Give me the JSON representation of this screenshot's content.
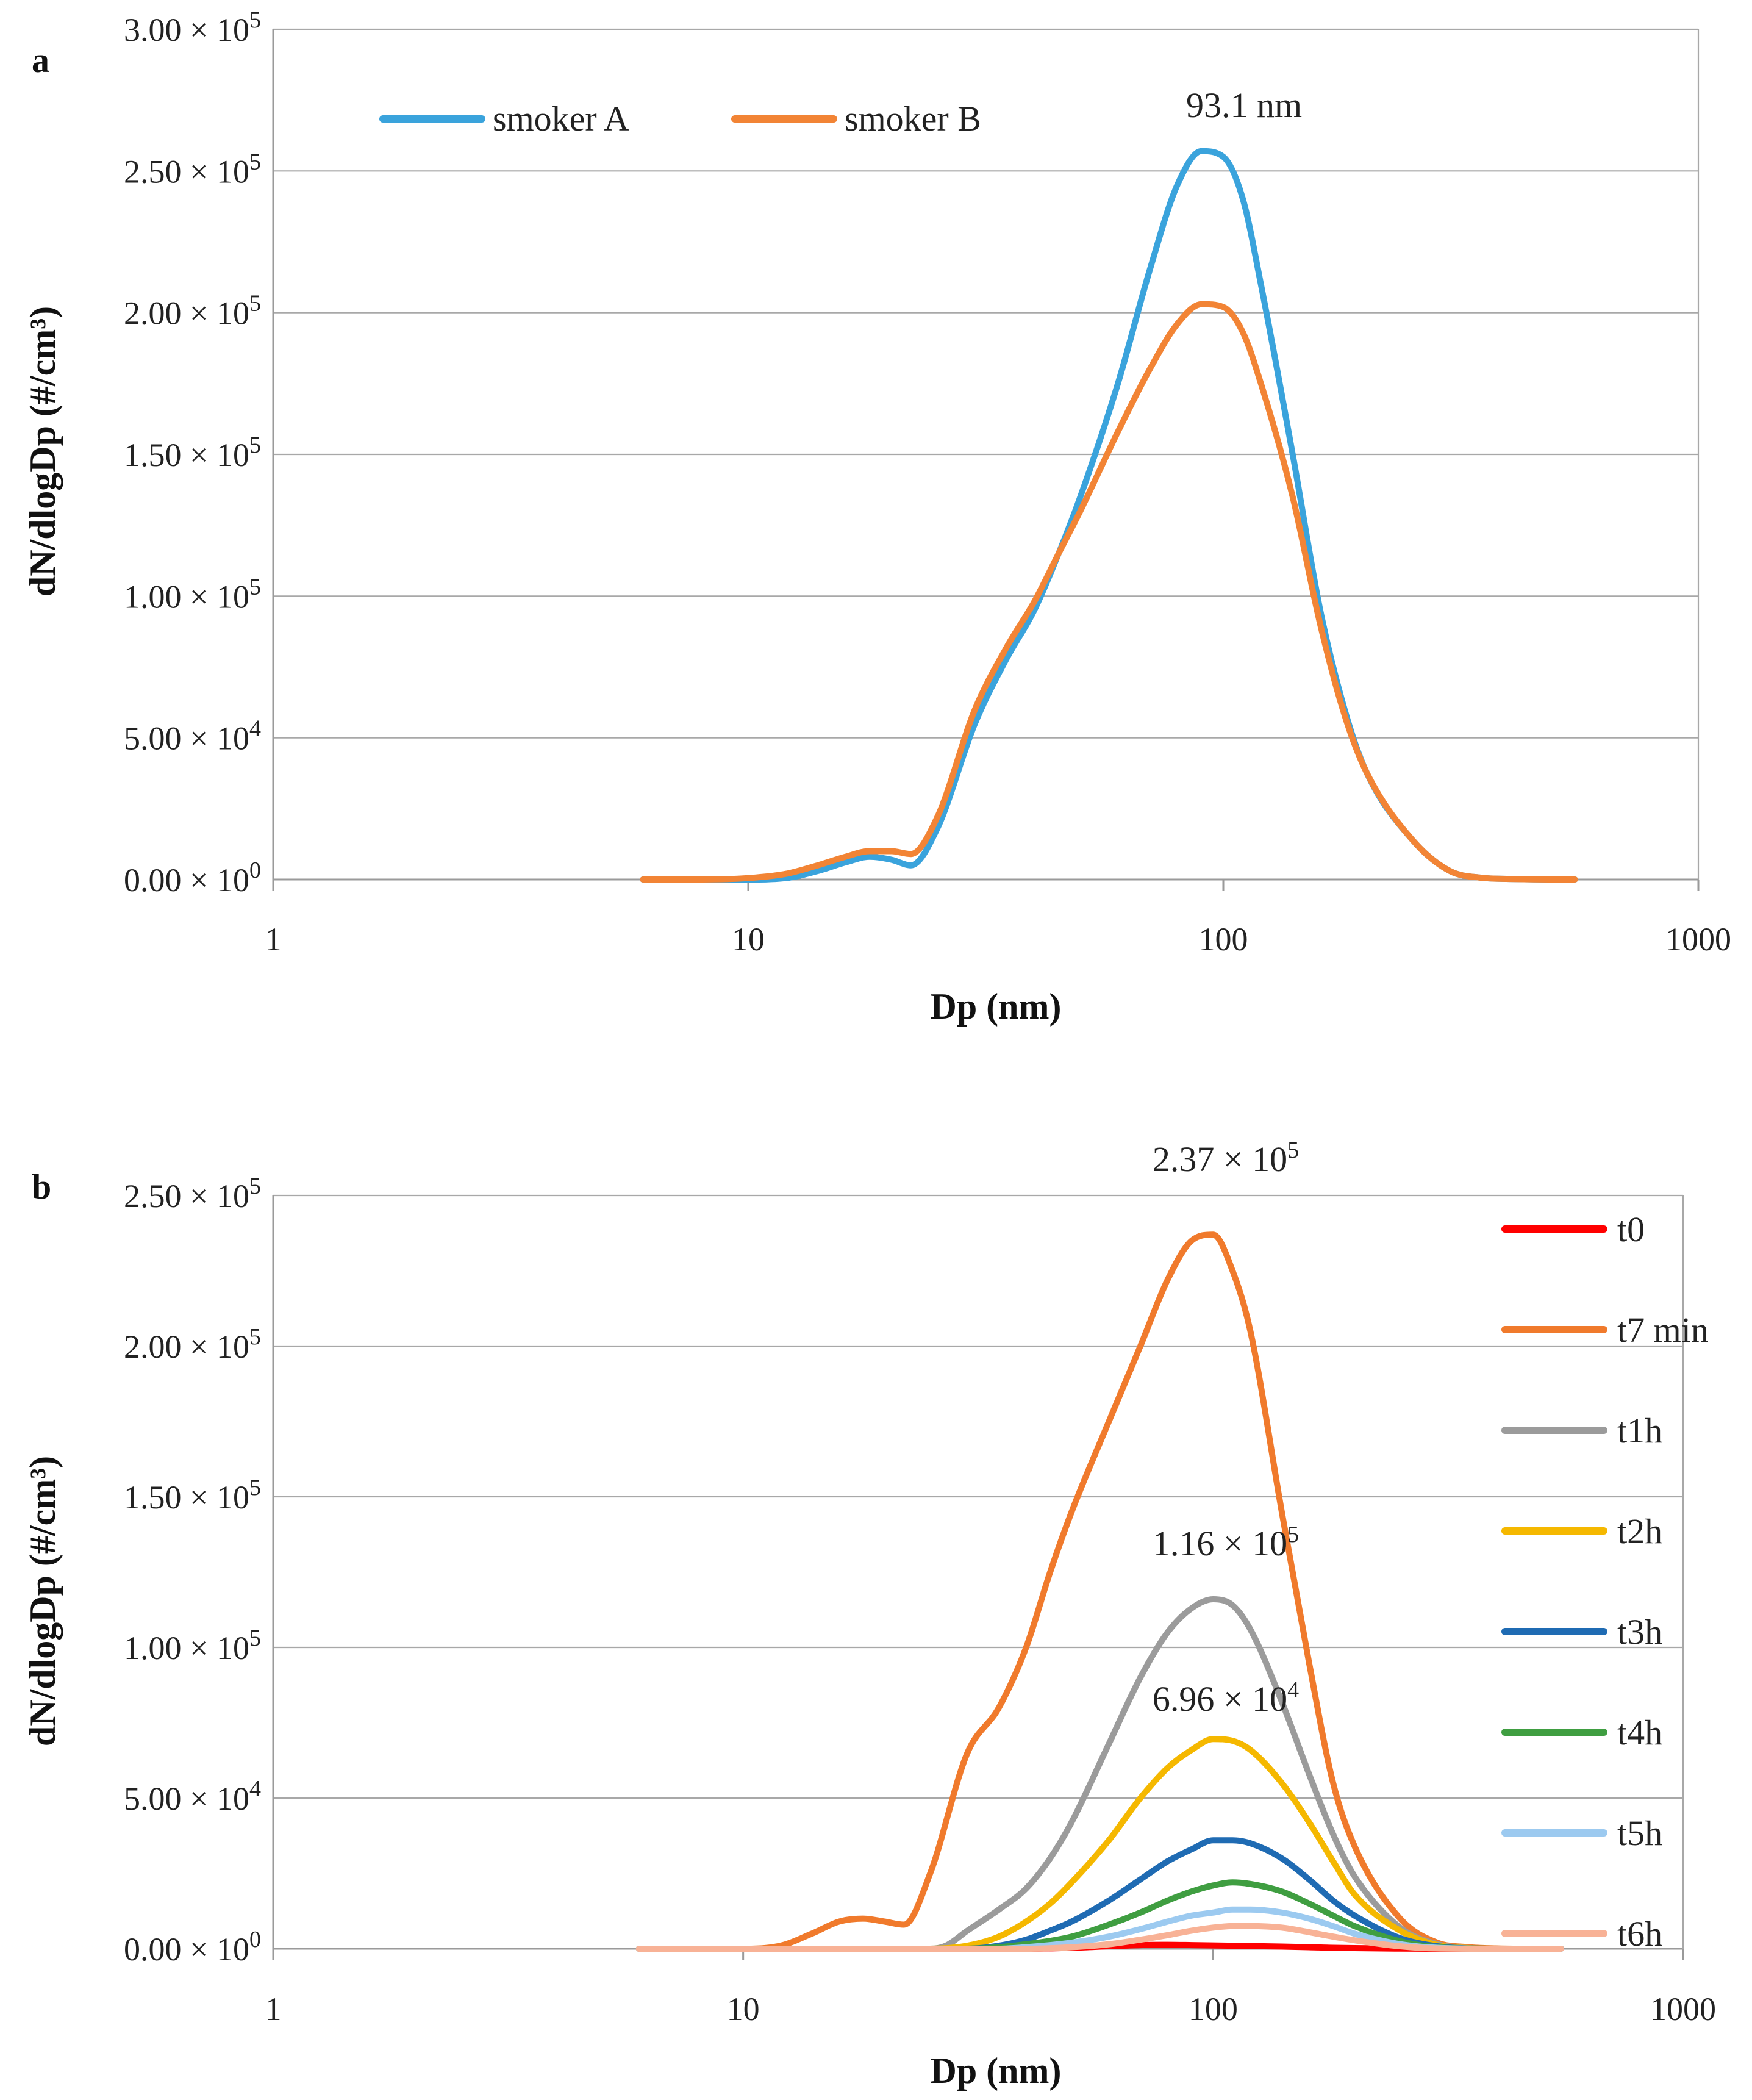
{
  "chart_data": [
    {
      "type": "line",
      "panel_label": "a",
      "xlabel": "Dp (nm)",
      "ylabel": "dN/dlogDp (#/cm³)",
      "xscale": "log",
      "xlim": [
        1,
        1000
      ],
      "ylim": [
        0,
        300000
      ],
      "x_ticks": [
        "1",
        "10",
        "100",
        "1000"
      ],
      "y_ticks": [
        {
          "mant": "0.00",
          "exp": "0"
        },
        {
          "mant": "5.00",
          "exp": "4"
        },
        {
          "mant": "1.00",
          "exp": "5"
        },
        {
          "mant": "1.50",
          "exp": "5"
        },
        {
          "mant": "2.00",
          "exp": "5"
        },
        {
          "mant": "2.50",
          "exp": "5"
        },
        {
          "mant": "3.00",
          "exp": "5"
        }
      ],
      "grid": true,
      "legend_position": "top-left",
      "annotations": [
        {
          "text": "93.1 nm"
        }
      ],
      "series": [
        {
          "name": "smoker A",
          "color": "#3aa3dc",
          "x": [
            6,
            8,
            10,
            12,
            14,
            16,
            18,
            20,
            22,
            25,
            30,
            35,
            40,
            45,
            50,
            60,
            70,
            80,
            90,
            100,
            110,
            120,
            140,
            160,
            180,
            200,
            250,
            300,
            350,
            400,
            450,
            500,
            550
          ],
          "values": [
            0,
            0,
            0,
            500,
            3000,
            6000,
            8000,
            7000,
            5000,
            18000,
            55000,
            78000,
            95000,
            115000,
            135000,
            175000,
            215000,
            245000,
            257000,
            255000,
            240000,
            210000,
            150000,
            95000,
            60000,
            38000,
            14000,
            3000,
            600,
            200,
            50,
            0,
            0
          ]
        },
        {
          "name": "smoker B",
          "color": "#f28435",
          "x": [
            6,
            8,
            10,
            12,
            14,
            16,
            18,
            20,
            22,
            25,
            30,
            35,
            40,
            45,
            50,
            60,
            70,
            80,
            90,
            100,
            110,
            120,
            140,
            160,
            180,
            200,
            250,
            300,
            350,
            400,
            450,
            500,
            550
          ],
          "values": [
            0,
            0,
            500,
            2000,
            5000,
            8000,
            10000,
            10000,
            9000,
            22000,
            60000,
            82000,
            98000,
            115000,
            130000,
            158000,
            180000,
            196000,
            203000,
            202000,
            193000,
            175000,
            135000,
            90000,
            58000,
            38000,
            14000,
            3000,
            600,
            200,
            50,
            0,
            0
          ]
        }
      ]
    },
    {
      "type": "line",
      "panel_label": "b",
      "xlabel": "Dp (nm)",
      "ylabel": "dN/dlogDp (#/cm³)",
      "xscale": "log",
      "xlim": [
        1,
        1000
      ],
      "ylim": [
        0,
        250000
      ],
      "x_ticks": [
        "1",
        "10",
        "100",
        "1000"
      ],
      "y_ticks": [
        {
          "mant": "0.00",
          "exp": "0"
        },
        {
          "mant": "5.00",
          "exp": "4"
        },
        {
          "mant": "1.00",
          "exp": "5"
        },
        {
          "mant": "1.50",
          "exp": "5"
        },
        {
          "mant": "2.00",
          "exp": "5"
        },
        {
          "mant": "2.50",
          "exp": "5"
        }
      ],
      "grid": true,
      "legend_position": "right",
      "annotations": [
        {
          "mant": "2.37",
          "exp": "5"
        },
        {
          "mant": "1.16",
          "exp": "5"
        },
        {
          "mant": "6.96",
          "exp": "4"
        }
      ],
      "series": [
        {
          "name": "t0",
          "color": "#ff0000",
          "x": [
            6,
            40,
            50,
            60,
            70,
            80,
            90,
            100,
            110,
            120,
            140,
            160,
            180,
            200,
            250,
            300,
            550
          ],
          "values": [
            0,
            0,
            300,
            800,
            1200,
            1300,
            1200,
            1100,
            1000,
            900,
            700,
            500,
            300,
            200,
            50,
            0,
            0
          ]
        },
        {
          "name": "t7 min",
          "color": "#f07a2c",
          "x": [
            6,
            8,
            10,
            12,
            14,
            16,
            18,
            20,
            22,
            25,
            30,
            35,
            40,
            45,
            50,
            60,
            70,
            80,
            90,
            100,
            110,
            120,
            140,
            160,
            180,
            200,
            250,
            300,
            350,
            400,
            450,
            500,
            550
          ],
          "values": [
            0,
            0,
            0,
            1000,
            5000,
            9000,
            10000,
            9000,
            8000,
            25000,
            65000,
            80000,
            100000,
            125000,
            145000,
            175000,
            200000,
            222000,
            235000,
            237000,
            225000,
            205000,
            145000,
            95000,
            55000,
            34000,
            10000,
            2000,
            500,
            100,
            0,
            0,
            0
          ]
        },
        {
          "name": "t1h",
          "color": "#9b9b9b",
          "x": [
            6,
            25,
            27,
            30,
            35,
            40,
            45,
            50,
            60,
            70,
            80,
            90,
            100,
            110,
            120,
            140,
            160,
            180,
            200,
            250,
            300,
            350,
            400,
            550
          ],
          "values": [
            0,
            0,
            1000,
            6000,
            13000,
            20000,
            30000,
            42000,
            68000,
            90000,
            105000,
            113000,
            116000,
            114000,
            106000,
            82000,
            58000,
            38000,
            24000,
            7000,
            1500,
            200,
            0,
            0
          ]
        },
        {
          "name": "t2h",
          "color": "#f5b800",
          "x": [
            6,
            25,
            30,
            35,
            40,
            45,
            50,
            60,
            70,
            80,
            90,
            100,
            110,
            120,
            140,
            160,
            180,
            200,
            250,
            300,
            350,
            400,
            550
          ],
          "values": [
            0,
            0,
            1000,
            4000,
            9000,
            15000,
            22000,
            36000,
            50000,
            60000,
            66000,
            69600,
            69000,
            66000,
            55000,
            42000,
            29000,
            18000,
            6000,
            1200,
            200,
            0,
            0
          ]
        },
        {
          "name": "t3h",
          "color": "#1f6bb3",
          "x": [
            6,
            30,
            35,
            40,
            45,
            50,
            60,
            70,
            80,
            90,
            100,
            110,
            120,
            140,
            160,
            180,
            200,
            250,
            300,
            350,
            400,
            550
          ],
          "values": [
            0,
            0,
            1000,
            3000,
            6000,
            9000,
            16000,
            23000,
            29000,
            33000,
            36000,
            36000,
            35000,
            30000,
            23000,
            16000,
            11000,
            3500,
            800,
            100,
            0,
            0
          ]
        },
        {
          "name": "t4h",
          "color": "#3f9e41",
          "x": [
            6,
            30,
            40,
            50,
            60,
            70,
            80,
            90,
            100,
            110,
            120,
            140,
            160,
            180,
            200,
            250,
            300,
            400,
            550
          ],
          "values": [
            0,
            0,
            1500,
            4000,
            8000,
            12000,
            16000,
            19000,
            21000,
            22000,
            21500,
            19000,
            15000,
            11000,
            7500,
            2500,
            500,
            0,
            0
          ]
        },
        {
          "name": "t5h",
          "color": "#9ccaf0",
          "x": [
            6,
            35,
            40,
            50,
            60,
            70,
            80,
            90,
            100,
            110,
            120,
            140,
            160,
            180,
            200,
            250,
            300,
            400,
            550
          ],
          "values": [
            0,
            0,
            500,
            2000,
            4000,
            6500,
            9000,
            11000,
            12000,
            13000,
            13000,
            12000,
            10000,
            7500,
            5000,
            1500,
            300,
            0,
            0
          ]
        },
        {
          "name": "t6h",
          "color": "#f8b296",
          "x": [
            6,
            40,
            50,
            60,
            70,
            80,
            90,
            100,
            110,
            120,
            140,
            160,
            180,
            200,
            250,
            300,
            400,
            550
          ],
          "values": [
            0,
            0,
            500,
            1500,
            3000,
            4500,
            6000,
            7000,
            7500,
            7500,
            7000,
            5500,
            4000,
            2800,
            800,
            100,
            0,
            0
          ]
        }
      ]
    }
  ]
}
